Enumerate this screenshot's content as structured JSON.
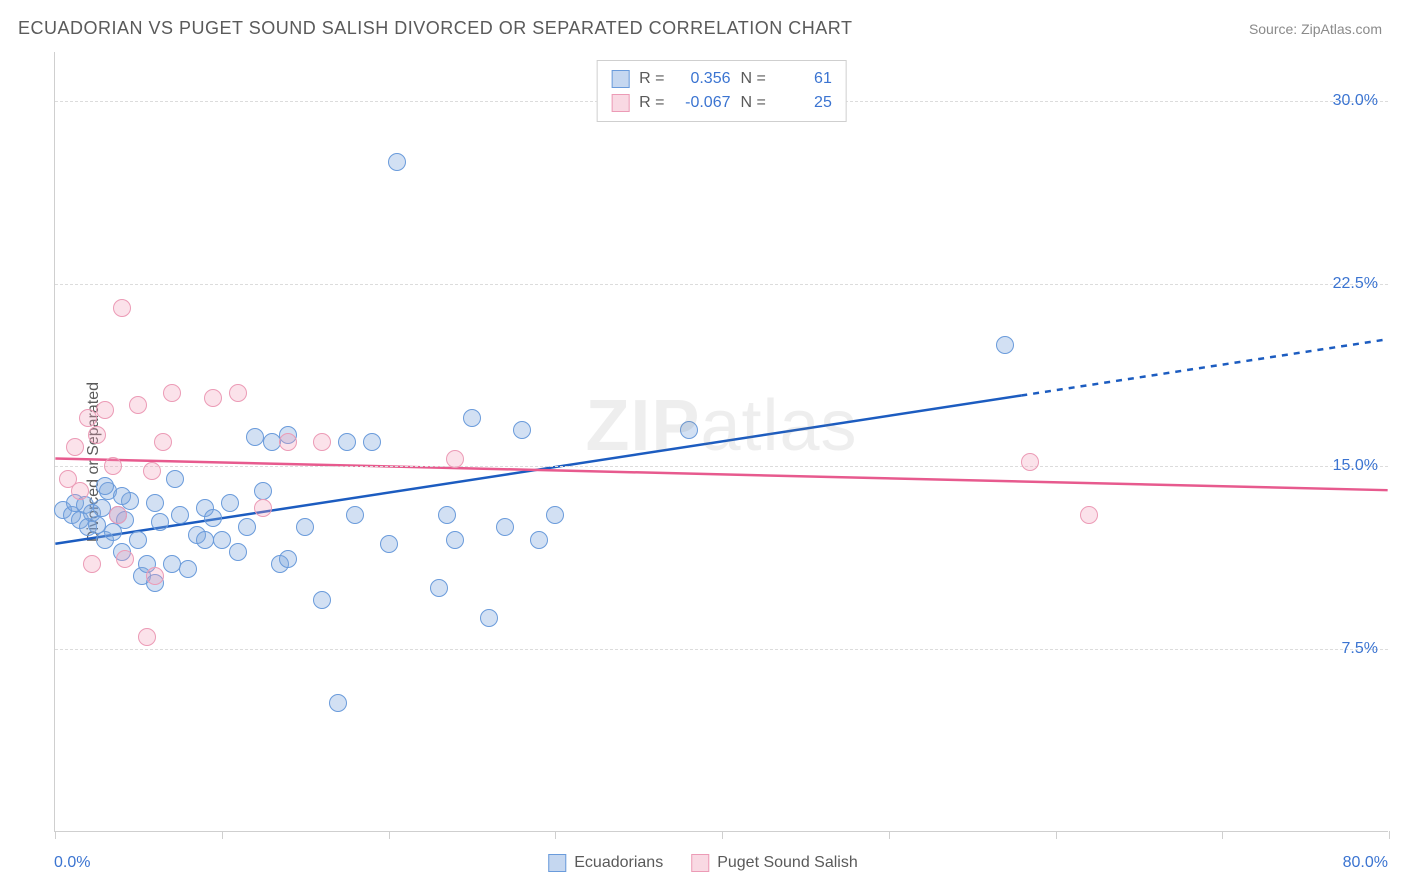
{
  "title": "ECUADORIAN VS PUGET SOUND SALISH DIVORCED OR SEPARATED CORRELATION CHART",
  "source": "Source: ZipAtlas.com",
  "ylabel": "Divorced or Separated",
  "watermark": "ZIPatlas",
  "chart": {
    "type": "scatter",
    "background_color": "#ffffff",
    "grid_color": "#dcdcdc",
    "axis_color": "#cfcfcf",
    "tick_label_color": "#3b74d1",
    "label_color": "#5a5a5a",
    "title_fontsize": 18,
    "label_fontsize": 16,
    "tick_fontsize": 16,
    "xlim": [
      0,
      80
    ],
    "ylim": [
      0,
      32
    ],
    "x_ticks": [
      0,
      10,
      20,
      30,
      40,
      50,
      60,
      70,
      80
    ],
    "x_tick_labels": {
      "0": "0.0%",
      "80": "80.0%"
    },
    "y_gridlines": [
      7.5,
      15.0,
      22.5,
      30.0
    ],
    "y_tick_labels": [
      "7.5%",
      "15.0%",
      "22.5%",
      "30.0%"
    ],
    "marker_size": 18,
    "marker_opacity": 0.35,
    "line_width": 2.5
  },
  "series": [
    {
      "name": "Ecuadorians",
      "color_fill": "#7fa7de",
      "color_stroke": "#6a9bdb",
      "r": 0.356,
      "n": 61,
      "trend": {
        "x1": 0,
        "y1": 11.8,
        "x2": 80,
        "y2": 20.2,
        "solid_until_x": 58,
        "line_color": "#1c5cc0"
      },
      "points": [
        [
          0.5,
          13.2
        ],
        [
          1.0,
          13.0
        ],
        [
          1.2,
          13.5
        ],
        [
          1.5,
          12.8
        ],
        [
          1.8,
          13.4
        ],
        [
          2.0,
          12.5
        ],
        [
          2.2,
          13.1
        ],
        [
          2.5,
          12.6
        ],
        [
          2.8,
          13.3
        ],
        [
          3.0,
          12.0
        ],
        [
          3.2,
          14.0
        ],
        [
          3.5,
          12.3
        ],
        [
          3.8,
          13.0
        ],
        [
          4.0,
          11.5
        ],
        [
          4.2,
          12.8
        ],
        [
          4.5,
          13.6
        ],
        [
          5.0,
          12.0
        ],
        [
          5.2,
          10.5
        ],
        [
          5.5,
          11.0
        ],
        [
          6.0,
          10.2
        ],
        [
          6.3,
          12.7
        ],
        [
          7.0,
          11.0
        ],
        [
          7.2,
          14.5
        ],
        [
          7.5,
          13.0
        ],
        [
          8.0,
          10.8
        ],
        [
          8.5,
          12.2
        ],
        [
          9.0,
          13.3
        ],
        [
          9.5,
          12.9
        ],
        [
          10.0,
          12.0
        ],
        [
          10.5,
          13.5
        ],
        [
          11.0,
          11.5
        ],
        [
          11.5,
          12.5
        ],
        [
          12.0,
          16.2
        ],
        [
          12.5,
          14.0
        ],
        [
          13.0,
          16.0
        ],
        [
          13.5,
          11.0
        ],
        [
          14.0,
          11.2
        ],
        [
          15.0,
          12.5
        ],
        [
          16.0,
          9.5
        ],
        [
          17.0,
          5.3
        ],
        [
          18.0,
          13.0
        ],
        [
          19.0,
          16.0
        ],
        [
          20.0,
          11.8
        ],
        [
          20.5,
          27.5
        ],
        [
          23.0,
          10.0
        ],
        [
          24.0,
          12.0
        ],
        [
          25.0,
          17.0
        ],
        [
          26.0,
          8.8
        ],
        [
          27.0,
          12.5
        ],
        [
          28.0,
          16.5
        ],
        [
          29.0,
          12.0
        ],
        [
          30.0,
          13.0
        ],
        [
          38.0,
          16.5
        ],
        [
          57.0,
          20.0
        ],
        [
          3.0,
          14.2
        ],
        [
          4.0,
          13.8
        ],
        [
          6.0,
          13.5
        ],
        [
          9.0,
          12.0
        ],
        [
          14.0,
          16.3
        ],
        [
          17.5,
          16.0
        ],
        [
          23.5,
          13.0
        ]
      ]
    },
    {
      "name": "Puget Sound Salish",
      "color_fill": "#f1a0b8",
      "color_stroke": "#ec9bb6",
      "r": -0.067,
      "n": 25,
      "trend": {
        "x1": 0,
        "y1": 15.3,
        "x2": 80,
        "y2": 14.0,
        "solid_until_x": 80,
        "line_color": "#e75a8e"
      },
      "points": [
        [
          0.8,
          14.5
        ],
        [
          1.2,
          15.8
        ],
        [
          1.5,
          14.0
        ],
        [
          2.0,
          17.0
        ],
        [
          2.5,
          16.3
        ],
        [
          3.0,
          17.3
        ],
        [
          3.5,
          15.0
        ],
        [
          4.0,
          21.5
        ],
        [
          4.2,
          11.2
        ],
        [
          5.0,
          17.5
        ],
        [
          5.5,
          8.0
        ],
        [
          5.8,
          14.8
        ],
        [
          6.5,
          16.0
        ],
        [
          7.0,
          18.0
        ],
        [
          9.5,
          17.8
        ],
        [
          11.0,
          18.0
        ],
        [
          12.5,
          13.3
        ],
        [
          14.0,
          16.0
        ],
        [
          16.0,
          16.0
        ],
        [
          24.0,
          15.3
        ],
        [
          58.5,
          15.2
        ],
        [
          62.0,
          13.0
        ],
        [
          3.8,
          13.0
        ],
        [
          2.2,
          11.0
        ],
        [
          6.0,
          10.5
        ]
      ]
    }
  ],
  "legend_top": {
    "r_label": "R =",
    "n_label": "N ="
  },
  "legend_bottom": [
    "Ecuadorians",
    "Puget Sound Salish"
  ]
}
